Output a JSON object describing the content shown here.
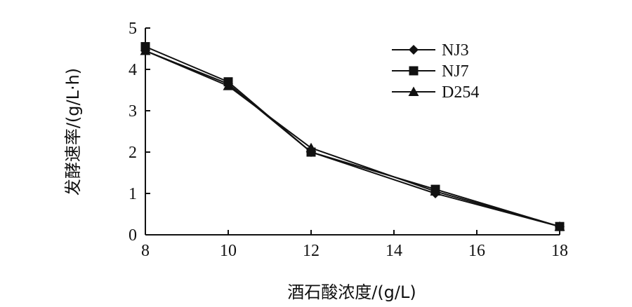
{
  "chart_data": {
    "type": "line",
    "title": "",
    "xlabel": "酒石酸浓度/(g/L)",
    "ylabel": "发酵速率/(g/L·h)",
    "xlim": [
      8,
      18
    ],
    "ylim": [
      0,
      5
    ],
    "xticks": [
      8,
      10,
      12,
      14,
      16,
      18
    ],
    "yticks": [
      0,
      1,
      2,
      3,
      4,
      5
    ],
    "grid": false,
    "legend_position": "top-right",
    "x": [
      8,
      10,
      12,
      15,
      18
    ],
    "series": [
      {
        "name": "NJ3",
        "marker": "diamond",
        "values": [
          4.45,
          3.65,
          2.0,
          1.0,
          0.2
        ]
      },
      {
        "name": "NJ7",
        "marker": "square",
        "values": [
          4.55,
          3.7,
          2.0,
          1.1,
          0.2
        ]
      },
      {
        "name": "D254",
        "marker": "triangle",
        "values": [
          4.45,
          3.6,
          2.1,
          1.05,
          0.2
        ]
      }
    ]
  }
}
